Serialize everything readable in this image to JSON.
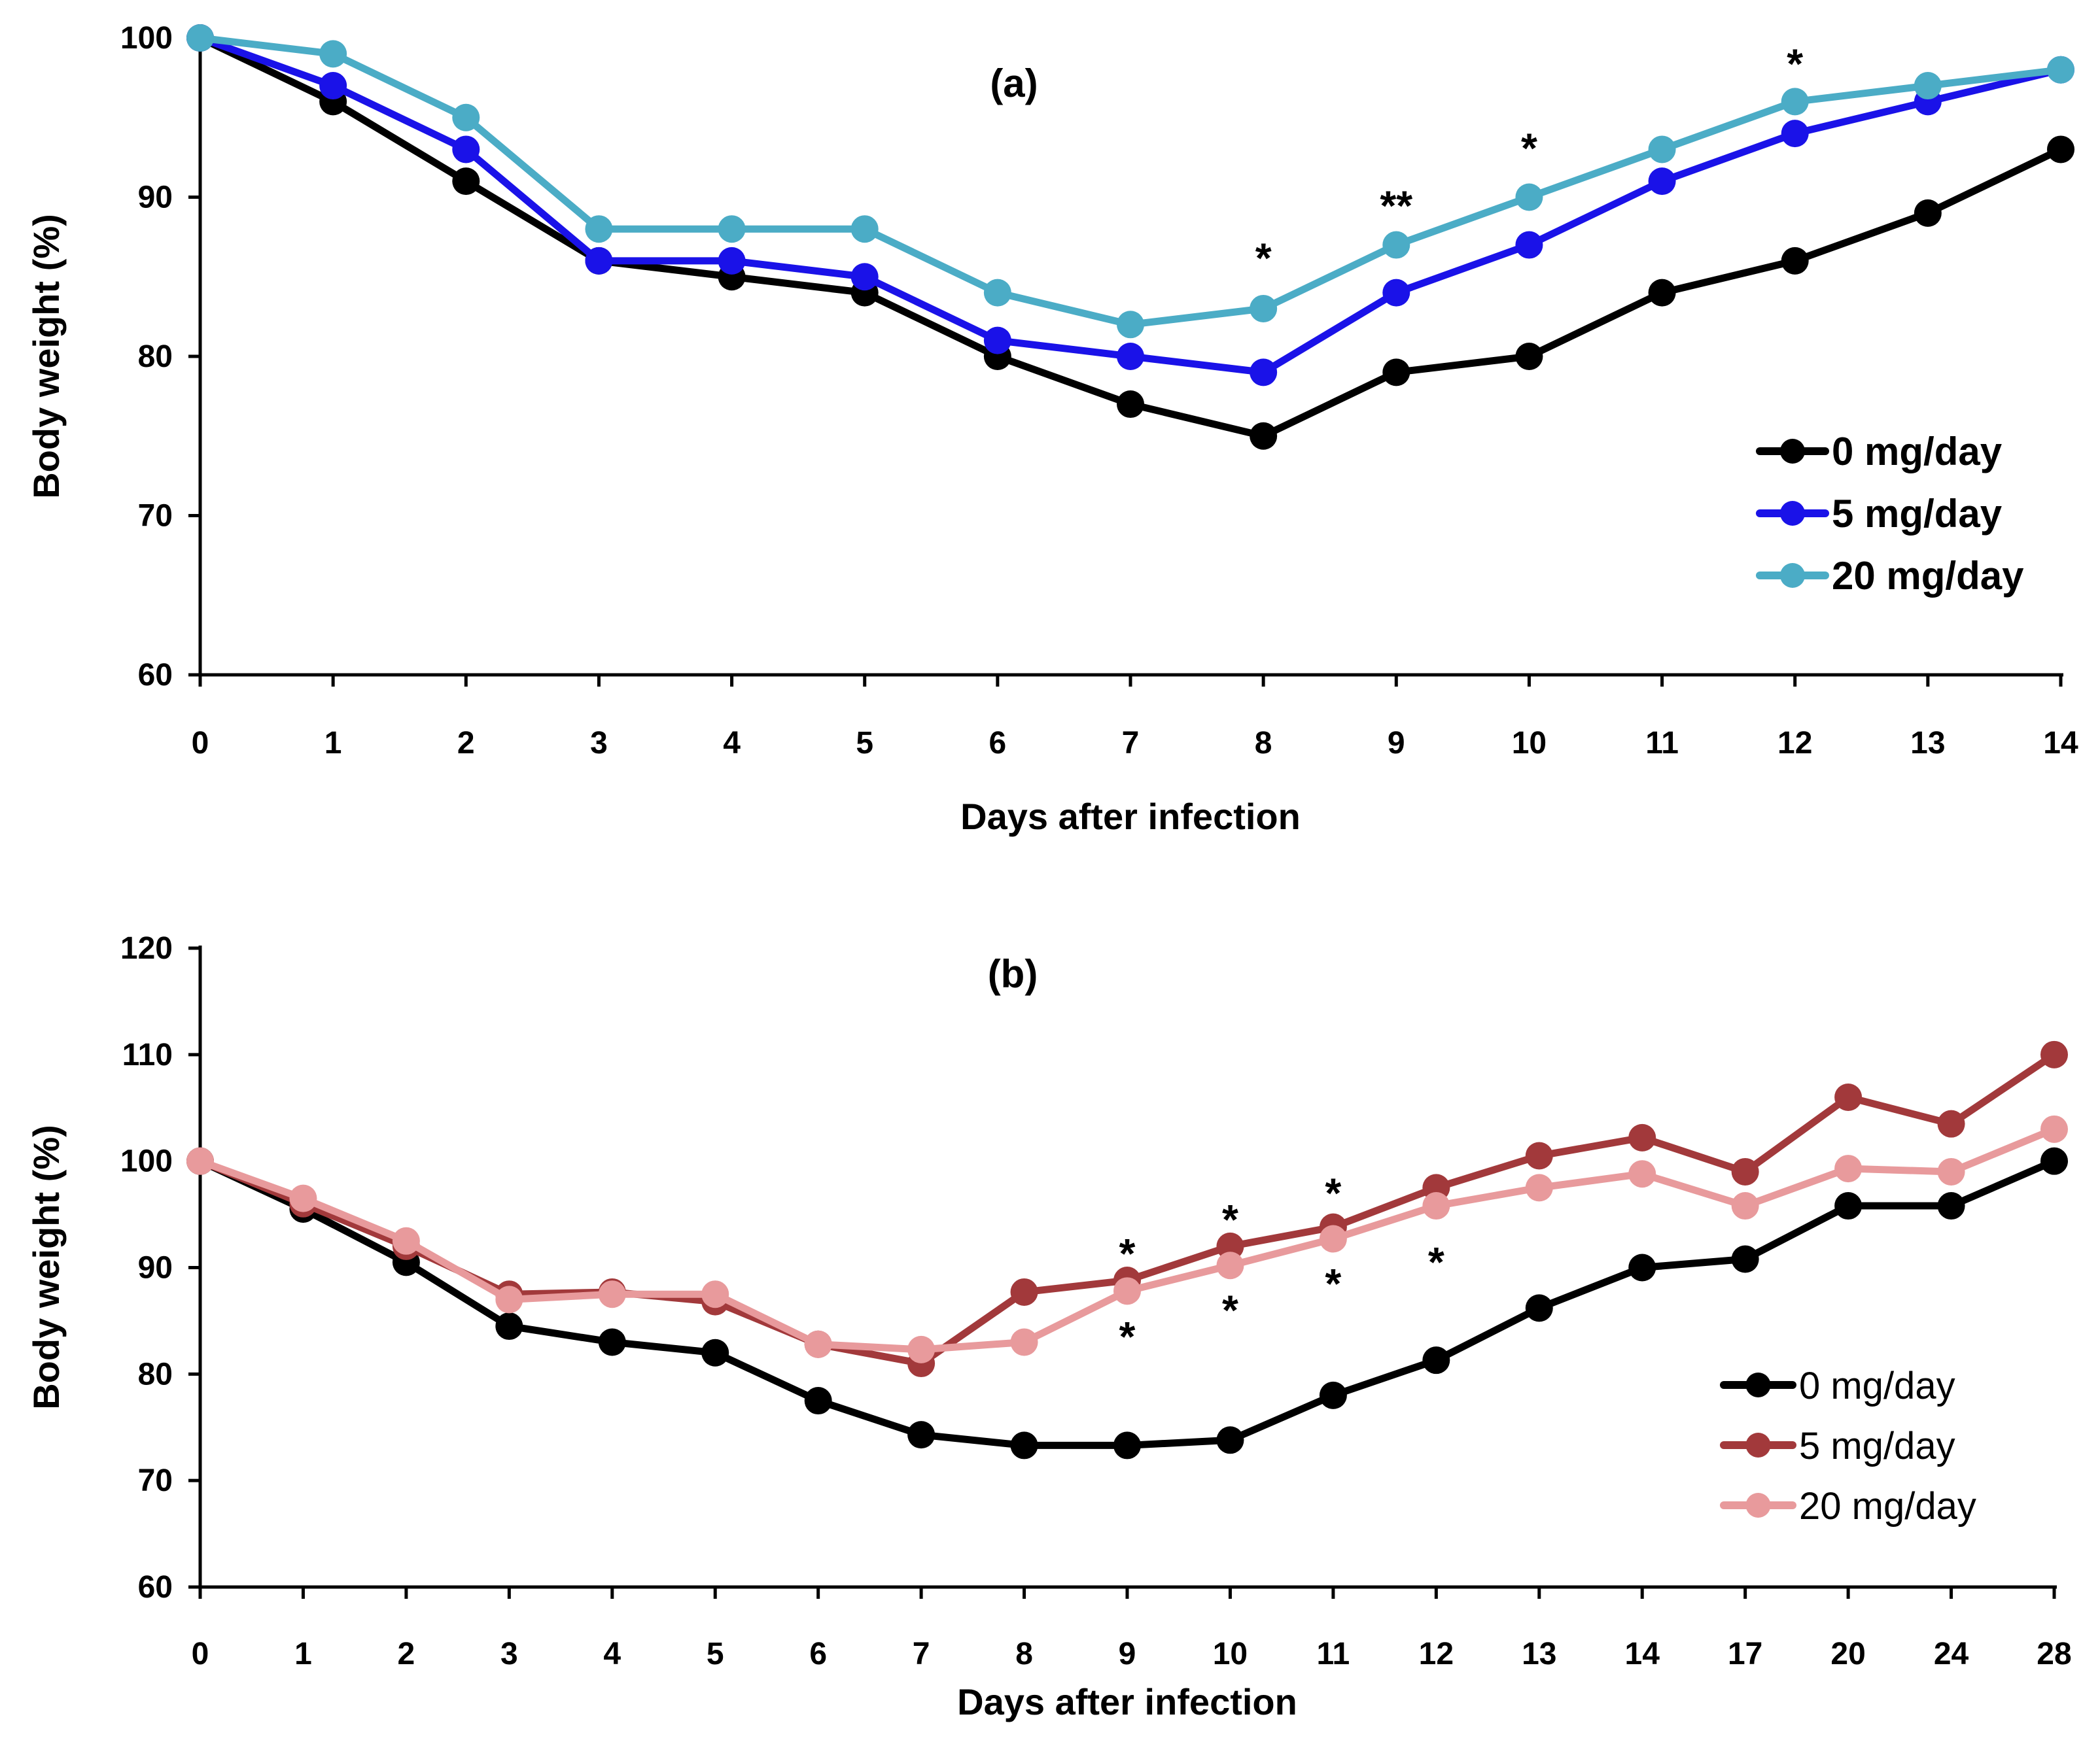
{
  "chart_data": [
    {
      "type": "line",
      "panel_label": "(a)",
      "xlabel": "Days after infection",
      "ylabel": "Body weight (%)",
      "categories": [
        "0",
        "1",
        "2",
        "3",
        "4",
        "5",
        "6",
        "7",
        "8",
        "9",
        "10",
        "11",
        "12",
        "13",
        "14"
      ],
      "ylim": [
        60,
        100
      ],
      "yticks": [
        "60",
        "70",
        "80",
        "90",
        "100"
      ],
      "legend_style": "bold",
      "series": [
        {
          "name": "0 mg/day",
          "color": "#000000",
          "values": [
            100,
            96,
            91,
            86,
            85,
            84,
            80,
            77,
            75,
            79,
            80,
            84,
            86,
            89,
            93
          ]
        },
        {
          "name": "5 mg/day",
          "color": "#1a12e8",
          "values": [
            100,
            97,
            93,
            86,
            86,
            85,
            81,
            80,
            79,
            84,
            87,
            91,
            94,
            96,
            98
          ]
        },
        {
          "name": "20 mg/day",
          "color": "#4bacc6",
          "values": [
            100,
            99,
            95,
            88,
            88,
            88,
            84,
            82,
            83,
            87,
            90,
            93,
            96,
            97,
            98
          ]
        }
      ],
      "annotations": [
        {
          "text": "*",
          "x_index": 8,
          "y": 86.5
        },
        {
          "text": "**",
          "x_index": 9,
          "y": 89.8
        },
        {
          "text": "*",
          "x_index": 10,
          "y": 93.4
        },
        {
          "text": "*",
          "x_index": 12,
          "y": 98.7
        }
      ]
    },
    {
      "type": "line",
      "panel_label": "(b)",
      "xlabel": "Days after infection",
      "ylabel": "Body weight (%)",
      "categories": [
        "0",
        "1",
        "2",
        "3",
        "4",
        "5",
        "6",
        "7",
        "8",
        "9",
        "10",
        "11",
        "12",
        "13",
        "14",
        "17",
        "20",
        "24",
        "28"
      ],
      "ylim": [
        60,
        120
      ],
      "yticks": [
        "60",
        "70",
        "80",
        "90",
        "100",
        "110",
        "120"
      ],
      "legend_style": "normal",
      "series": [
        {
          "name": "0 mg/day",
          "color": "#000000",
          "values": [
            100,
            95.5,
            90.5,
            84.5,
            83,
            82,
            77.5,
            74.3,
            73.3,
            73.3,
            73.8,
            78,
            81.3,
            86.2,
            90,
            90.8,
            95.8,
            95.8,
            100
          ]
        },
        {
          "name": "5 mg/day",
          "color": "#a2393b",
          "values": [
            100,
            96,
            92,
            87.5,
            87.7,
            86.8,
            82.8,
            81,
            87.7,
            88.8,
            92,
            93.8,
            97.5,
            100.5,
            102.2,
            99,
            106,
            103.5,
            110
          ]
        },
        {
          "name": "20 mg/day",
          "color": "#e89a9c",
          "values": [
            100,
            96.5,
            92.5,
            87,
            87.5,
            87.5,
            82.8,
            82.3,
            83,
            87.8,
            90.2,
            92.7,
            95.8,
            97.5,
            98.8,
            95.8,
            99.3,
            99,
            103
          ]
        }
      ],
      "annotations": [
        {
          "text": "*",
          "x_index": 9,
          "y": 91.8
        },
        {
          "text": "*",
          "x_index": 9,
          "y": 84
        },
        {
          "text": "*",
          "x_index": 10,
          "y": 95
        },
        {
          "text": "*",
          "x_index": 10,
          "y": 86.5
        },
        {
          "text": "*",
          "x_index": 11,
          "y": 97.5
        },
        {
          "text": "*",
          "x_index": 11,
          "y": 89
        },
        {
          "text": "*",
          "x_index": 12,
          "y": 91
        }
      ]
    }
  ]
}
